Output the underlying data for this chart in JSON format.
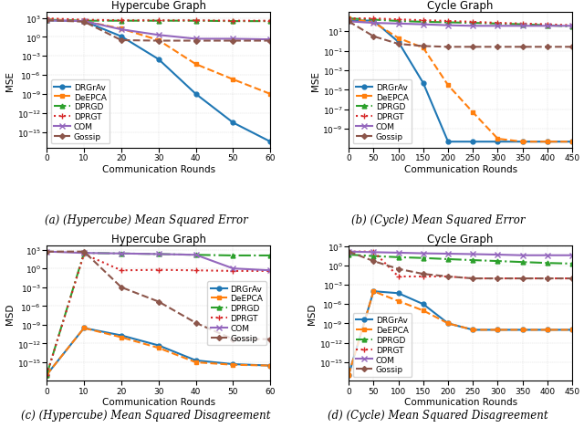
{
  "panels": [
    {
      "title": "Hypercube Graph",
      "xlabel": "Communication Rounds",
      "ylabel": "MSE",
      "caption": "(a) (Hypercube) Mean Squared Error",
      "xvals": [
        0,
        10,
        20,
        30,
        40,
        50,
        60
      ],
      "xlim": [
        0,
        60
      ],
      "legend_loc": "lower left",
      "series": [
        {
          "label": "DRGrAv",
          "color": "#1f77b4",
          "linestyle": "-",
          "marker": "o",
          "markersize": 3.5,
          "linewidth": 1.5,
          "data": [
            400.0,
            300.0,
            1.2,
            0.0003,
            1e-09,
            3e-14,
            3e-17
          ]
        },
        {
          "label": "DeEPCA",
          "color": "#ff7f0e",
          "linestyle": "--",
          "marker": "s",
          "markersize": 3.5,
          "linewidth": 1.5,
          "data": [
            600.0,
            300.0,
            20.0,
            0.3,
            5e-05,
            2e-07,
            1e-09
          ]
        },
        {
          "label": "DPRGD",
          "color": "#2ca02c",
          "linestyle": "-.",
          "marker": "^",
          "markersize": 3.5,
          "linewidth": 1.5,
          "data": [
            500.0,
            350.0,
            350.0,
            350.0,
            350.0,
            300.0,
            300.0
          ]
        },
        {
          "label": "DPRGT",
          "color": "#d62728",
          "linestyle": ":",
          "marker": "+",
          "markersize": 5,
          "linewidth": 1.5,
          "data": [
            800.0,
            500.0,
            400.0,
            400.0,
            400.0,
            350.0,
            350.0
          ]
        },
        {
          "label": "COM",
          "color": "#9467bd",
          "linestyle": "-",
          "marker": "x",
          "markersize": 4,
          "linewidth": 1.5,
          "data": [
            400.0,
            300.0,
            15.0,
            2.0,
            0.5,
            0.5,
            0.4
          ]
        },
        {
          "label": "Gossip",
          "color": "#8c564b",
          "linestyle": "--",
          "marker": "D",
          "markersize": 3,
          "linewidth": 1.5,
          "data": [
            400.0,
            250.0,
            0.3,
            0.25,
            0.25,
            0.25,
            0.25
          ]
        }
      ]
    },
    {
      "title": "Cycle Graph",
      "xlabel": "Communication Rounds",
      "ylabel": "MSE",
      "caption": "(b) (Cycle) Mean Squared Error",
      "xvals": [
        0,
        50,
        100,
        150,
        200,
        250,
        300,
        350,
        400,
        450
      ],
      "xlim": [
        0,
        450
      ],
      "legend_loc": "lower left",
      "series": [
        {
          "label": "DRGrAv",
          "color": "#1f77b4",
          "linestyle": "-",
          "marker": "o",
          "markersize": 3.5,
          "linewidth": 1.5,
          "data": [
            120.0,
            120.0,
            0.8,
            5e-05,
            5e-11,
            5e-11,
            5e-11,
            5e-11,
            5e-11,
            5e-11
          ]
        },
        {
          "label": "DeEPCA",
          "color": "#ff7f0e",
          "linestyle": "--",
          "marker": "s",
          "markersize": 3.5,
          "linewidth": 1.5,
          "data": [
            200.0,
            80.0,
            2.0,
            0.2,
            3e-05,
            5e-08,
            1e-10,
            5e-11,
            5e-11,
            5e-11
          ]
        },
        {
          "label": "DPRGD",
          "color": "#2ca02c",
          "linestyle": "-.",
          "marker": "^",
          "markersize": 3.5,
          "linewidth": 1.5,
          "data": [
            200.0,
            150.0,
            110.0,
            90.0,
            80.0,
            70.0,
            60.0,
            50.0,
            40.0,
            30.0
          ]
        },
        {
          "label": "DPRGT",
          "color": "#d62728",
          "linestyle": ":",
          "marker": "+",
          "markersize": 5,
          "linewidth": 1.5,
          "data": [
            200.0,
            200.0,
            160.0,
            130.0,
            110.0,
            90.0,
            70.0,
            60.0,
            50.0,
            40.0
          ]
        },
        {
          "label": "COM",
          "color": "#9467bd",
          "linestyle": "-",
          "marker": "x",
          "markersize": 4,
          "linewidth": 1.5,
          "data": [
            100.0,
            70.0,
            60.0,
            50.0,
            40.0,
            35.0,
            35.0,
            35.0,
            35.0,
            35.0
          ]
        },
        {
          "label": "Gossip",
          "color": "#8c564b",
          "linestyle": "--",
          "marker": "D",
          "markersize": 3,
          "linewidth": 1.5,
          "data": [
            100.0,
            3.0,
            0.5,
            0.3,
            0.25,
            0.25,
            0.25,
            0.25,
            0.25,
            0.25
          ]
        }
      ]
    },
    {
      "title": "Hypercube Graph",
      "xlabel": "Communication Rounds",
      "ylabel": "MSD",
      "caption": "(c) (Hypercube) Mean Squared Disagreement",
      "xvals": [
        0,
        10,
        20,
        30,
        40,
        50,
        60
      ],
      "xlim": [
        0,
        60
      ],
      "legend_loc": "center right",
      "series": [
        {
          "label": "DRGrAv",
          "color": "#1f77b4",
          "linestyle": "-",
          "marker": "o",
          "markersize": 3.5,
          "linewidth": 1.5,
          "data": [
            1e-17,
            3e-10,
            2e-11,
            5e-13,
            2e-15,
            5e-16,
            3e-16
          ]
        },
        {
          "label": "DeEPCA",
          "color": "#ff7f0e",
          "linestyle": "--",
          "marker": "s",
          "markersize": 3.5,
          "linewidth": 1.5,
          "data": [
            1e-17,
            3e-10,
            1e-11,
            2e-13,
            1e-15,
            4e-16,
            3e-16
          ]
        },
        {
          "label": "DPRGD",
          "color": "#2ca02c",
          "linestyle": "-.",
          "marker": "^",
          "markersize": 3.5,
          "linewidth": 1.5,
          "data": [
            1e-17,
            300.0,
            250.0,
            200.0,
            150.0,
            120.0,
            120.0
          ]
        },
        {
          "label": "DPRGT",
          "color": "#d62728",
          "linestyle": ":",
          "marker": "+",
          "markersize": 5,
          "linewidth": 1.5,
          "data": [
            1e-17,
            200.0,
            0.5,
            0.6,
            0.5,
            0.4,
            0.4
          ]
        },
        {
          "label": "COM",
          "color": "#9467bd",
          "linestyle": "-",
          "marker": "x",
          "markersize": 4,
          "linewidth": 1.5,
          "data": [
            500.0,
            300.0,
            250.0,
            200.0,
            150.0,
            1.0,
            0.5
          ]
        },
        {
          "label": "Gossip",
          "color": "#8c564b",
          "linestyle": "--",
          "marker": "D",
          "markersize": 3,
          "linewidth": 1.5,
          "data": [
            500.0,
            500.0,
            0.001,
            5e-06,
            2e-09,
            5e-12,
            5e-12
          ]
        }
      ]
    },
    {
      "title": "Cycle Graph",
      "xlabel": "Communication Rounds",
      "ylabel": "MSD",
      "caption": "(d) (Cycle) Mean Squared Disagreement",
      "xvals": [
        0,
        50,
        100,
        150,
        200,
        250,
        300,
        350,
        400,
        450
      ],
      "xlim": [
        0,
        450
      ],
      "legend_loc": "lower left",
      "series": [
        {
          "label": "DRGrAv",
          "color": "#1f77b4",
          "linestyle": "-",
          "marker": "o",
          "markersize": 3.5,
          "linewidth": 1.5,
          "data": [
            1e-17,
            0.0001,
            5e-05,
            1e-06,
            1e-09,
            1e-10,
            1e-10,
            1e-10,
            1e-10,
            1e-10
          ]
        },
        {
          "label": "DeEPCA",
          "color": "#ff7f0e",
          "linestyle": "--",
          "marker": "s",
          "markersize": 3.5,
          "linewidth": 1.5,
          "data": [
            1e-17,
            0.0001,
            3e-06,
            1e-07,
            1e-09,
            1e-10,
            1e-10,
            1e-10,
            1e-10,
            1e-10
          ]
        },
        {
          "label": "DPRGD",
          "color": "#2ca02c",
          "linestyle": "-.",
          "marker": "^",
          "markersize": 3.5,
          "linewidth": 1.5,
          "data": [
            50.0,
            30.0,
            20.0,
            15.0,
            10.0,
            7.0,
            5.0,
            3.5,
            2.5,
            2.0
          ]
        },
        {
          "label": "DPRGT",
          "color": "#d62728",
          "linestyle": ":",
          "marker": "+",
          "markersize": 5,
          "linewidth": 1.5,
          "data": [
            150.0,
            150.0,
            0.02,
            0.02,
            0.02,
            0.01,
            0.01,
            0.01,
            0.01,
            0.01
          ]
        },
        {
          "label": "COM",
          "color": "#9467bd",
          "linestyle": "-",
          "marker": "x",
          "markersize": 4,
          "linewidth": 1.5,
          "data": [
            150.0,
            120.0,
            100.0,
            80.0,
            70.0,
            60.0,
            50.0,
            40.0,
            40.0,
            40.0
          ]
        },
        {
          "label": "Gossip",
          "color": "#8c564b",
          "linestyle": "--",
          "marker": "D",
          "markersize": 3,
          "linewidth": 1.5,
          "data": [
            150.0,
            5.0,
            0.3,
            0.05,
            0.02,
            0.01,
            0.01,
            0.01,
            0.01,
            0.01
          ]
        }
      ]
    }
  ],
  "fig_width": 6.4,
  "fig_height": 4.81,
  "background_color": "#ffffff",
  "caption_fontsize": 8.5,
  "axis_label_fontsize": 7.5,
  "tick_fontsize": 6.5,
  "legend_fontsize": 6.5,
  "title_fontsize": 8.5
}
